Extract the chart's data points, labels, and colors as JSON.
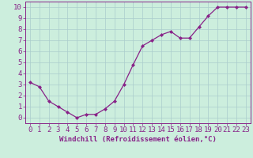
{
  "x": [
    0,
    1,
    2,
    3,
    4,
    5,
    6,
    7,
    8,
    9,
    10,
    11,
    12,
    13,
    14,
    15,
    16,
    17,
    18,
    19,
    20,
    21,
    22,
    23
  ],
  "y": [
    3.2,
    2.8,
    1.5,
    1.0,
    0.5,
    0.0,
    0.3,
    0.3,
    0.8,
    1.5,
    3.0,
    4.8,
    6.5,
    7.0,
    7.5,
    7.8,
    7.2,
    7.2,
    8.2,
    9.2,
    10.0,
    10.0,
    10.0,
    10.0
  ],
  "line_color": "#882288",
  "marker_color": "#882288",
  "bg_color": "#CCEEDD",
  "grid_color": "#AACCCC",
  "xlabel": "Windchill (Refroidissement éolien,°C)",
  "xlabel_color": "#882288",
  "ylabel_ticks": [
    0,
    1,
    2,
    3,
    4,
    5,
    6,
    7,
    8,
    9,
    10
  ],
  "xlim": [
    -0.5,
    23.5
  ],
  "ylim": [
    -0.5,
    10.5
  ],
  "xtick_labels": [
    "0",
    "1",
    "2",
    "3",
    "4",
    "5",
    "6",
    "7",
    "8",
    "9",
    "10",
    "11",
    "12",
    "13",
    "14",
    "15",
    "16",
    "17",
    "18",
    "19",
    "20",
    "21",
    "22",
    "23"
  ],
  "spine_color": "#882288",
  "tick_color": "#882288",
  "font_size": 6.5
}
